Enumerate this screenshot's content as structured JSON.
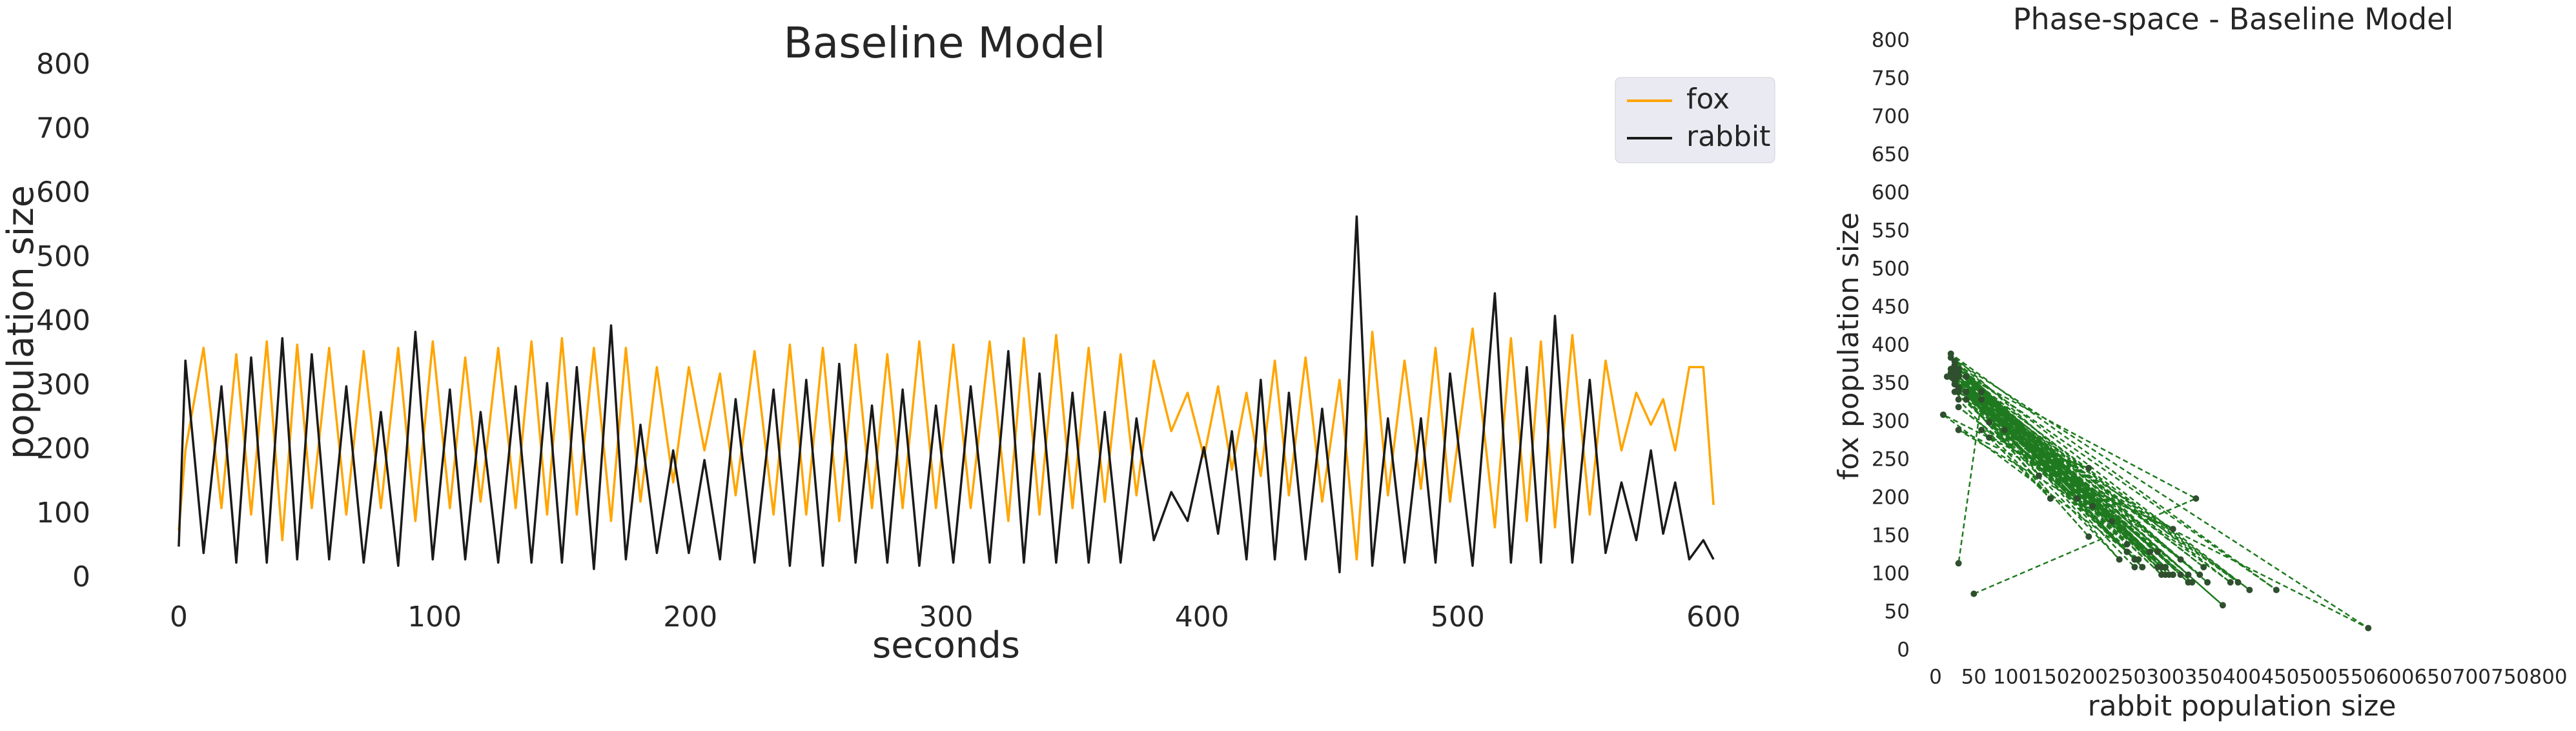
{
  "chart_data": [
    {
      "type": "line",
      "title": "Baseline Model",
      "xlabel": "seconds",
      "ylabel": "population size",
      "x": [
        0,
        2.6,
        9.7,
        16.7,
        22.5,
        28.3,
        34.4,
        40.5,
        46.3,
        52,
        58.8,
        65.5,
        72.3,
        79,
        85.8,
        92.5,
        99.3,
        106,
        112,
        118,
        124.9,
        131.7,
        137.9,
        144,
        149.8,
        155.6,
        162.3,
        169,
        174.8,
        180.5,
        186.9,
        193.3,
        199.4,
        205.5,
        211.6,
        217.7,
        225.1,
        232.5,
        238.9,
        245.3,
        251.8,
        258.2,
        264.6,
        271,
        277,
        283,
        289.5,
        296,
        302.8,
        309.6,
        317,
        324.3,
        330.4,
        336.5,
        343,
        349.4,
        355.7,
        362,
        368.2,
        374.4,
        381.2,
        388,
        394.4,
        400.8,
        406.3,
        411.7,
        417.4,
        423,
        428.5,
        434,
        440.5,
        447,
        453.8,
        460.5,
        466.6,
        472.7,
        479.2,
        485.6,
        491.3,
        497,
        505.8,
        514.5,
        520.8,
        527,
        532.5,
        538,
        544.8,
        551.6,
        557.8,
        564,
        569.8,
        575.5,
        580.3,
        585,
        590.5,
        596,
        600
      ],
      "series": [
        {
          "name": "fox",
          "color": "#ffa500",
          "values": [
            75,
            200,
            360,
            110,
            350,
            100,
            370,
            60,
            365,
            110,
            360,
            100,
            355,
            110,
            360,
            90,
            370,
            110,
            345,
            120,
            360,
            110,
            370,
            100,
            375,
            100,
            360,
            90,
            360,
            120,
            330,
            150,
            330,
            200,
            320,
            130,
            355,
            100,
            365,
            100,
            360,
            90,
            365,
            110,
            350,
            110,
            370,
            110,
            365,
            110,
            370,
            90,
            375,
            100,
            380,
            110,
            360,
            120,
            350,
            130,
            340,
            230,
            290,
            190,
            300,
            170,
            290,
            160,
            340,
            130,
            345,
            120,
            310,
            30,
            385,
            130,
            340,
            140,
            360,
            120,
            390,
            80,
            375,
            90,
            370,
            80,
            380,
            100,
            340,
            200,
            290,
            240,
            280,
            200,
            330,
            330,
            115
          ]
        },
        {
          "name": "rabbit",
          "color": "#1a1a1a",
          "values": [
            50,
            340,
            40,
            300,
            25,
            345,
            25,
            375,
            30,
            350,
            30,
            300,
            25,
            260,
            20,
            385,
            30,
            295,
            30,
            260,
            25,
            300,
            25,
            305,
            25,
            330,
            15,
            395,
            30,
            240,
            40,
            200,
            40,
            185,
            30,
            280,
            25,
            295,
            20,
            310,
            20,
            335,
            25,
            270,
            25,
            295,
            20,
            270,
            25,
            300,
            25,
            355,
            25,
            320,
            25,
            290,
            25,
            260,
            25,
            250,
            60,
            135,
            90,
            205,
            70,
            230,
            30,
            310,
            30,
            290,
            30,
            265,
            10,
            565,
            20,
            250,
            25,
            250,
            25,
            320,
            20,
            445,
            25,
            330,
            25,
            410,
            25,
            310,
            40,
            150,
            60,
            200,
            70,
            150,
            30,
            60,
            30
          ]
        }
      ],
      "xlim": [
        -30,
        630
      ],
      "xticks": [
        0,
        100,
        200,
        300,
        400,
        500,
        600
      ],
      "ylim": [
        0,
        800
      ],
      "yticks": [
        0,
        100,
        200,
        300,
        400,
        500,
        600,
        700,
        800
      ],
      "legend": "upper right",
      "grid": false
    },
    {
      "type": "line",
      "title": "Phase-space - Baseline Model",
      "xlabel": "rabbit population size",
      "ylabel": "fox population size",
      "color": "#1f7a1f",
      "marker_color": "#2f4f2f",
      "linestyle": "dashed",
      "markers": true,
      "x": [
        50,
        340,
        40,
        300,
        25,
        345,
        25,
        375,
        30,
        350,
        30,
        300,
        25,
        260,
        20,
        385,
        30,
        295,
        30,
        260,
        25,
        300,
        25,
        305,
        25,
        330,
        15,
        395,
        30,
        240,
        40,
        200,
        40,
        185,
        30,
        280,
        25,
        295,
        20,
        310,
        20,
        335,
        25,
        270,
        25,
        295,
        20,
        270,
        25,
        300,
        25,
        355,
        25,
        320,
        25,
        290,
        25,
        260,
        25,
        250,
        60,
        135,
        90,
        205,
        70,
        230,
        30,
        310,
        30,
        290,
        30,
        265,
        10,
        565,
        20,
        250,
        25,
        250,
        25,
        320,
        20,
        445,
        25,
        330,
        25,
        410,
        25,
        310,
        40,
        150,
        60,
        200,
        70,
        150,
        30,
        60,
        30
      ],
      "values": [
        75,
        200,
        360,
        110,
        350,
        100,
        370,
        60,
        365,
        110,
        360,
        100,
        355,
        110,
        360,
        90,
        370,
        110,
        345,
        120,
        360,
        110,
        370,
        100,
        375,
        100,
        360,
        90,
        360,
        120,
        330,
        150,
        330,
        200,
        320,
        130,
        355,
        100,
        365,
        100,
        360,
        90,
        365,
        110,
        350,
        110,
        370,
        110,
        365,
        110,
        370,
        90,
        375,
        100,
        380,
        110,
        360,
        120,
        350,
        130,
        340,
        230,
        290,
        190,
        300,
        170,
        290,
        160,
        340,
        130,
        345,
        120,
        310,
        30,
        385,
        130,
        340,
        140,
        360,
        120,
        390,
        80,
        375,
        90,
        370,
        80,
        380,
        100,
        340,
        200,
        290,
        240,
        280,
        200,
        330,
        330,
        115
      ],
      "xlim": [
        0,
        800
      ],
      "xticks": [
        0,
        50,
        100,
        150,
        200,
        250,
        300,
        350,
        400,
        450,
        500,
        550,
        600,
        650,
        700,
        750,
        800
      ],
      "ylim": [
        0,
        800
      ],
      "yticks": [
        0,
        50,
        100,
        150,
        200,
        250,
        300,
        350,
        400,
        450,
        500,
        550,
        600,
        650,
        700,
        750,
        800
      ],
      "grid": false
    }
  ]
}
